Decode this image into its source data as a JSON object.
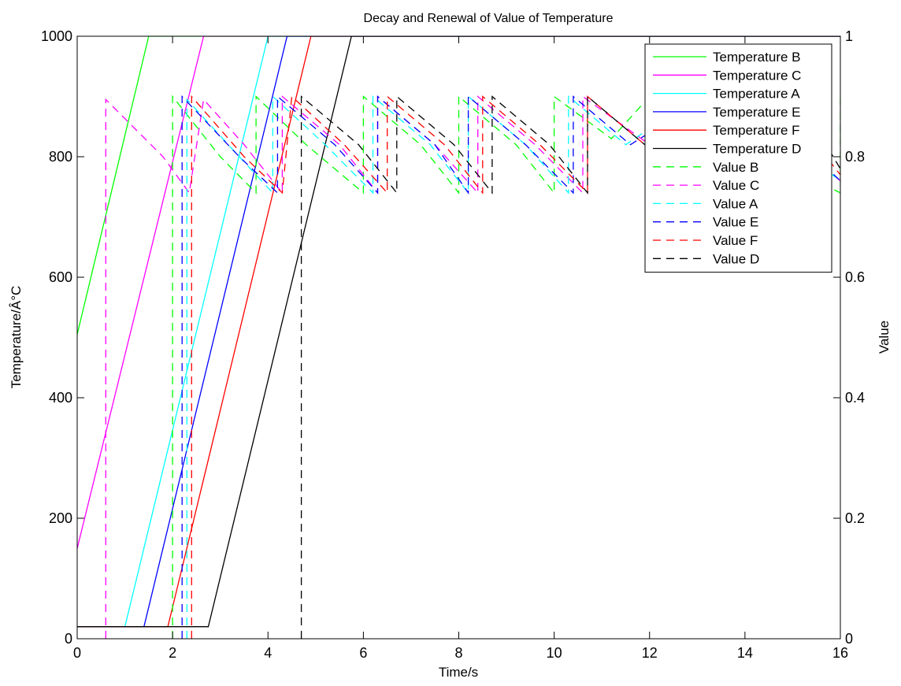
{
  "chart_data": {
    "type": "line",
    "title": "Decay and Renewal of Value of Temperature",
    "xlabel": "Time/s",
    "ylabel": "Temperature/Â°C",
    "y2label": "Value",
    "xlim": [
      0,
      16
    ],
    "ylim": [
      0,
      1000
    ],
    "y2lim": [
      0,
      1
    ],
    "xticks": [
      "0",
      "2",
      "4",
      "6",
      "8",
      "10",
      "12",
      "14",
      "16"
    ],
    "yticks": [
      "0",
      "200",
      "400",
      "600",
      "800",
      "1000"
    ],
    "y2ticks": [
      "0",
      "0.2",
      "0.4",
      "0.6",
      "0.8",
      "1"
    ],
    "grid": false,
    "legend_position": "top-right",
    "temperature_series": [
      {
        "name": "Temperature B",
        "color": "#00ff00",
        "points": [
          [
            0,
            505
          ],
          [
            1.5,
            1000
          ],
          [
            16,
            1000
          ]
        ]
      },
      {
        "name": "Temperature C",
        "color": "#ff00ff",
        "points": [
          [
            0,
            150
          ],
          [
            2.65,
            1000
          ],
          [
            16,
            1000
          ]
        ]
      },
      {
        "name": "Temperature A",
        "color": "#00ffff",
        "points": [
          [
            0,
            20
          ],
          [
            1.0,
            20
          ],
          [
            4.0,
            1000
          ],
          [
            16,
            1000
          ]
        ]
      },
      {
        "name": "Temperature E",
        "color": "#0000ff",
        "points": [
          [
            0,
            20
          ],
          [
            1.4,
            20
          ],
          [
            4.4,
            1000
          ],
          [
            16,
            1000
          ]
        ]
      },
      {
        "name": "Temperature F",
        "color": "#ff0000",
        "points": [
          [
            0,
            20
          ],
          [
            1.9,
            20
          ],
          [
            4.9,
            1000
          ],
          [
            16,
            1000
          ]
        ]
      },
      {
        "name": "Temperature D",
        "color": "#000000",
        "points": [
          [
            0,
            20
          ],
          [
            2.75,
            20
          ],
          [
            5.75,
            1000
          ],
          [
            16,
            1000
          ]
        ]
      }
    ],
    "value_series": [
      {
        "name": "Value B",
        "color": "#00ff00",
        "points": [
          [
            2.0,
            0.0
          ],
          [
            2.0,
            0.9
          ],
          [
            3.0,
            0.8
          ],
          [
            3.75,
            0.74
          ],
          [
            3.75,
            0.9
          ],
          [
            4.8,
            0.82
          ],
          [
            6.0,
            0.74
          ],
          [
            6.0,
            0.9
          ],
          [
            7.2,
            0.82
          ],
          [
            8.0,
            0.74
          ],
          [
            8.0,
            0.9
          ],
          [
            9.2,
            0.82
          ],
          [
            10.0,
            0.74
          ],
          [
            10.0,
            0.9
          ],
          [
            11.2,
            0.83
          ],
          [
            12.0,
            0.9
          ],
          [
            14.0,
            0.82
          ],
          [
            16.0,
            0.74
          ],
          [
            16.0,
            0.9
          ]
        ]
      },
      {
        "name": "Value C",
        "color": "#ff00ff",
        "points": [
          [
            0.6,
            0.0
          ],
          [
            0.6,
            0.895
          ],
          [
            1.8,
            0.8
          ],
          [
            2.35,
            0.74
          ],
          [
            2.65,
            0.895
          ],
          [
            3.5,
            0.82
          ],
          [
            4.3,
            0.74
          ],
          [
            4.3,
            0.9
          ],
          [
            5.5,
            0.82
          ],
          [
            6.3,
            0.74
          ],
          [
            6.3,
            0.9
          ],
          [
            7.5,
            0.82
          ],
          [
            8.4,
            0.74
          ],
          [
            8.4,
            0.9
          ],
          [
            9.6,
            0.82
          ],
          [
            10.6,
            0.74
          ],
          [
            10.6,
            0.9
          ],
          [
            12.0,
            0.82
          ],
          [
            14.0,
            0.9
          ],
          [
            16.0,
            0.76
          ]
        ]
      },
      {
        "name": "Value A",
        "color": "#00ffff",
        "points": [
          [
            2.3,
            0.0
          ],
          [
            2.3,
            0.895
          ],
          [
            3.4,
            0.8
          ],
          [
            4.1,
            0.74
          ],
          [
            4.1,
            0.9
          ],
          [
            5.2,
            0.82
          ],
          [
            6.2,
            0.74
          ],
          [
            6.2,
            0.9
          ],
          [
            7.4,
            0.82
          ],
          [
            8.2,
            0.74
          ],
          [
            8.2,
            0.9
          ],
          [
            9.4,
            0.82
          ],
          [
            10.3,
            0.74
          ],
          [
            10.3,
            0.9
          ],
          [
            11.5,
            0.82
          ],
          [
            13.0,
            0.9
          ],
          [
            15.0,
            0.82
          ],
          [
            16.0,
            0.76
          ]
        ]
      },
      {
        "name": "Value E",
        "color": "#0000ff",
        "points": [
          [
            2.2,
            0.0
          ],
          [
            2.2,
            0.9
          ],
          [
            3.4,
            0.8
          ],
          [
            4.2,
            0.74
          ],
          [
            4.2,
            0.9
          ],
          [
            5.4,
            0.82
          ],
          [
            6.3,
            0.74
          ],
          [
            6.3,
            0.9
          ],
          [
            7.5,
            0.82
          ],
          [
            8.2,
            0.74
          ],
          [
            8.2,
            0.9
          ],
          [
            9.4,
            0.82
          ],
          [
            10.4,
            0.74
          ],
          [
            10.4,
            0.9
          ],
          [
            11.6,
            0.82
          ],
          [
            13.2,
            0.9
          ],
          [
            15.2,
            0.82
          ],
          [
            16.0,
            0.76
          ]
        ]
      },
      {
        "name": "Value F",
        "color": "#ff0000",
        "points": [
          [
            2.4,
            0.0
          ],
          [
            2.4,
            0.9
          ],
          [
            3.5,
            0.8
          ],
          [
            4.3,
            0.74
          ],
          [
            4.5,
            0.9
          ],
          [
            5.6,
            0.82
          ],
          [
            6.5,
            0.74
          ],
          [
            6.5,
            0.9
          ],
          [
            7.7,
            0.82
          ],
          [
            8.5,
            0.74
          ],
          [
            8.5,
            0.9
          ],
          [
            9.7,
            0.82
          ],
          [
            10.7,
            0.74
          ],
          [
            10.7,
            0.9
          ],
          [
            11.9,
            0.82
          ],
          [
            13.5,
            0.9
          ],
          [
            15.5,
            0.82
          ],
          [
            16.0,
            0.77
          ]
        ]
      },
      {
        "name": "Value D",
        "color": "#000000",
        "points": [
          [
            4.7,
            0.0
          ],
          [
            4.7,
            0.9
          ],
          [
            5.9,
            0.82
          ],
          [
            6.7,
            0.74
          ],
          [
            6.7,
            0.9
          ],
          [
            7.9,
            0.82
          ],
          [
            8.7,
            0.74
          ],
          [
            8.7,
            0.9
          ],
          [
            9.9,
            0.82
          ],
          [
            10.7,
            0.74
          ],
          [
            10.7,
            0.9
          ],
          [
            11.9,
            0.82
          ],
          [
            13.7,
            0.9
          ],
          [
            15.7,
            0.82
          ],
          [
            16.0,
            0.78
          ]
        ]
      }
    ]
  }
}
